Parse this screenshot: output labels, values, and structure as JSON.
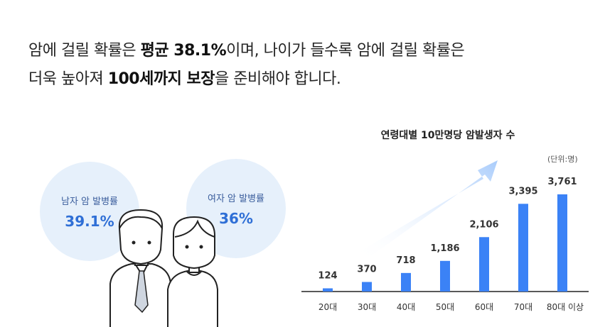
{
  "headline": {
    "line1_a": "암에 걸릴 확률은 ",
    "line1_b": "평균 38.1%",
    "line1_c": "이며, 나이가 들수록 암에 걸릴 확률은",
    "line2_a": "더욱 높아져 ",
    "line2_b": "100세까지 보장",
    "line2_c": "을 준비해야 합니다."
  },
  "stats": {
    "male_label": "남자 암 발병률",
    "male_value": "39.1%",
    "female_label": "여자 암 발병률",
    "female_value": "36%"
  },
  "chart_data": {
    "type": "bar",
    "title": "연령대별 10만명당 암발생자 수",
    "unit": "(단위:명)",
    "categories": [
      "20대",
      "30대",
      "40대",
      "50대",
      "60대",
      "70대",
      "80대 이상"
    ],
    "values": [
      124,
      370,
      718,
      1186,
      2106,
      3395,
      3761
    ],
    "value_labels": [
      "124",
      "370",
      "718",
      "1,186",
      "2,106",
      "3,395",
      "3,761"
    ],
    "bar_color": "#3b82f6",
    "arrow_color": "#bcd7fb"
  }
}
